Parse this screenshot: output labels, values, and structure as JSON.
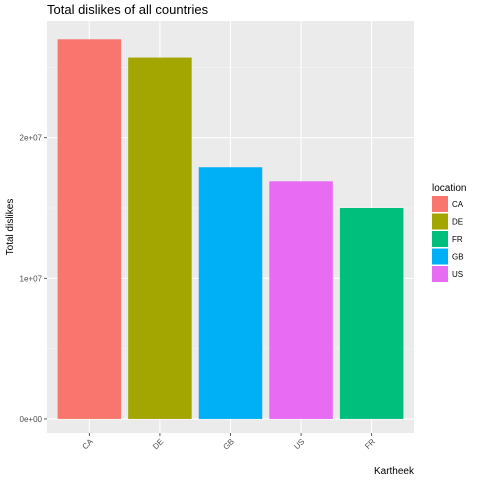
{
  "chart_data": {
    "type": "bar",
    "title": "Total dislikes of all countries",
    "xlabel": "Kartheek",
    "ylabel": "Total dislikes",
    "categories": [
      "CA",
      "DE",
      "GB",
      "US",
      "FR"
    ],
    "values": [
      27000000,
      25700000,
      17900000,
      16900000,
      15000000
    ],
    "colors": [
      "#F8766D",
      "#A3A500",
      "#00B0F6",
      "#E76BF3",
      "#00BF7D"
    ],
    "ylim": [
      -1000000,
      28300000
    ],
    "y_ticks": [
      0,
      10000000,
      20000000
    ],
    "y_tick_labels": [
      "0e+00",
      "1e+07",
      "2e+07"
    ],
    "grid": true,
    "panel_background": "#EBEBEB",
    "legend": {
      "title": "location",
      "placement": "right",
      "entries": [
        {
          "label": "CA",
          "color": "#F8766D"
        },
        {
          "label": "DE",
          "color": "#A3A500"
        },
        {
          "label": "FR",
          "color": "#00BF7D"
        },
        {
          "label": "GB",
          "color": "#00B0F6"
        },
        {
          "label": "US",
          "color": "#E76BF3"
        }
      ]
    }
  }
}
